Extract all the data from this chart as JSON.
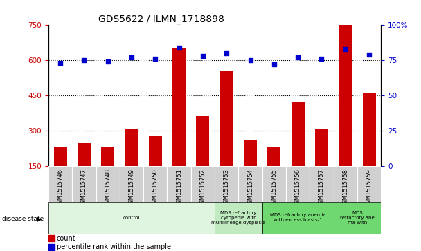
{
  "title": "GDS5622 / ILMN_1718898",
  "samples": [
    "GSM1515746",
    "GSM1515747",
    "GSM1515748",
    "GSM1515749",
    "GSM1515750",
    "GSM1515751",
    "GSM1515752",
    "GSM1515753",
    "GSM1515754",
    "GSM1515755",
    "GSM1515756",
    "GSM1515757",
    "GSM1515758",
    "GSM1515759"
  ],
  "counts": [
    230,
    245,
    228,
    308,
    278,
    650,
    360,
    555,
    258,
    228,
    420,
    305,
    750,
    460
  ],
  "percentile_ranks_pct": [
    73,
    75,
    74,
    77,
    76,
    84,
    78,
    80,
    75,
    72,
    77,
    76,
    83,
    79
  ],
  "ylim_left": [
    150,
    750
  ],
  "ylim_right": [
    0,
    100
  ],
  "yticks_left": [
    150,
    300,
    450,
    600,
    750
  ],
  "yticks_right": [
    0,
    25,
    50,
    75,
    100
  ],
  "bar_color": "#cc0000",
  "dot_color": "#0000cc",
  "tick_label_color_left": "#cc0000",
  "tick_label_color_right": "#0000cc",
  "disease_groups": [
    {
      "label": "control",
      "start": 0,
      "end": 7,
      "color": "#e0f5e0"
    },
    {
      "label": "MDS refractory\ncytopenia with\nmultilineage dysplasia",
      "start": 7,
      "end": 9,
      "color": "#c0ebc0"
    },
    {
      "label": "MDS refractory anemia\nwith excess blasts-1",
      "start": 9,
      "end": 12,
      "color": "#70d870"
    },
    {
      "label": "MDS\nrefractory ane\nma with",
      "start": 12,
      "end": 14,
      "color": "#70d870"
    }
  ],
  "disease_state_label": "disease state",
  "legend_count_label": "count",
  "legend_percentile_label": "percentile rank within the sample",
  "xtick_bg_color": "#d0d0d0"
}
